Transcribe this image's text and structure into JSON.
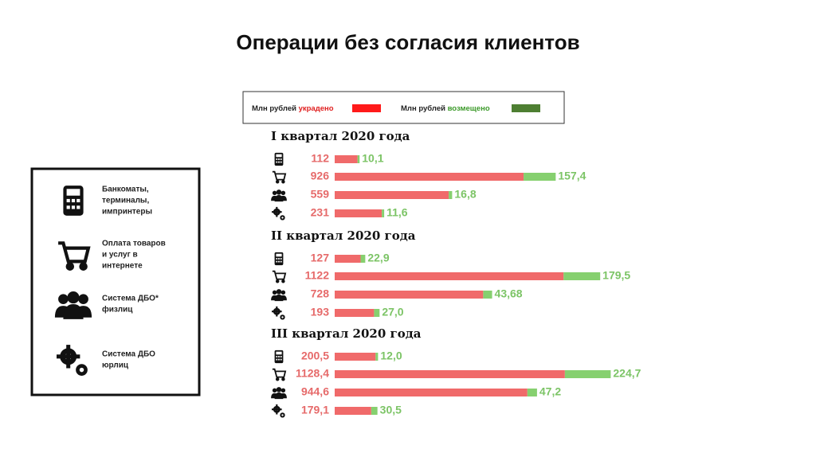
{
  "title": "Операции без согласия клиентов",
  "key": {
    "items": [
      {
        "lines": [
          "Банкоматы,",
          "терминалы,",
          "импринтеры"
        ]
      },
      {
        "lines": [
          "Оплата товаров",
          "и услуг в",
          "интернете"
        ]
      },
      {
        "lines": [
          "Система ДБО*",
          "физлиц"
        ]
      },
      {
        "lines": [
          "Система ДБО",
          "юрлиц"
        ]
      }
    ]
  },
  "chart_data": {
    "type": "bar",
    "orientation": "horizontal",
    "stacked": true,
    "unit": "Млн рублей",
    "series": [
      {
        "name": "украдено",
        "color": "#f06a6a"
      },
      {
        "name": "возмещено",
        "color": "#86d06f",
        "legend_color": "#4e7f32"
      }
    ],
    "panels": [
      {
        "title": "I квартал 2020 года",
        "series": [
          {
            "values": [
              112,
              926,
              559,
              231
            ],
            "value_labels": [
              "112",
              "926",
              "559",
              "231"
            ]
          },
          {
            "values": [
              10.1,
              157.4,
              16.8,
              11.6
            ],
            "value_labels": [
              "10,1",
              "157,4",
              "16,8",
              "11,6"
            ]
          }
        ]
      },
      {
        "title": "II квартал 2020 года",
        "series": [
          {
            "values": [
              127,
              1122,
              728,
              193
            ],
            "value_labels": [
              "127",
              "1122",
              "728",
              "193"
            ]
          },
          {
            "values": [
              22.9,
              179.5,
              43.68,
              27.0
            ],
            "value_labels": [
              "22,9",
              "179,5",
              "43,68",
              "27,0"
            ]
          }
        ]
      },
      {
        "title": "III квартал 2020 года",
        "series": [
          {
            "values": [
              200.5,
              1128.4,
              944.6,
              179.1
            ],
            "value_labels": [
              "200,5",
              "1128,4",
              "944,6",
              "179,1"
            ]
          },
          {
            "values": [
              12.0,
              224.7,
              47.2,
              30.5
            ],
            "value_labels": [
              "12,0",
              "224,7",
              "47,2",
              "30,5"
            ]
          }
        ]
      }
    ]
  }
}
